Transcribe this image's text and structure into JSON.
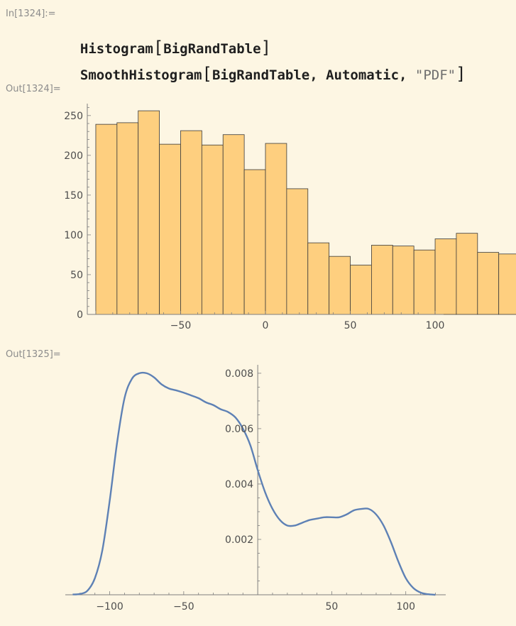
{
  "notebook": {
    "in_label": "In[1324]:=",
    "out_label_1": "Out[1324]=",
    "out_label_2": "Out[1325]=",
    "code": {
      "line1": {
        "func": "Histogram",
        "open": "[",
        "arg": "BigRandTable",
        "close": "]"
      },
      "line2": {
        "func": "SmoothHistogram",
        "open": "[",
        "arg": "BigRandTable, Automatic, ",
        "str": "\"PDF\"",
        "close": "]"
      }
    }
  },
  "chart_data": [
    {
      "type": "bar",
      "bin_width": 12.5,
      "bin_start": -100,
      "values": [
        239,
        241,
        256,
        214,
        231,
        213,
        226,
        182,
        215,
        158,
        90,
        73,
        62,
        87,
        86,
        81,
        95,
        102,
        78,
        76
      ],
      "xlim": [
        -105,
        105
      ],
      "ylim": [
        0,
        265
      ],
      "x_ticks": [
        -50,
        0,
        50,
        100
      ],
      "x_tick_labels": [
        "−50",
        "0",
        "50",
        "100"
      ],
      "y_ticks": [
        0,
        50,
        100,
        150,
        200,
        250
      ],
      "y_tick_labels": [
        "0",
        "50",
        "100",
        "150",
        "200",
        "250"
      ],
      "bar_color": "#fecf7f",
      "edge_color": "#3a3a3a",
      "axis_color": "#7f7f7f"
    },
    {
      "type": "line",
      "x": [
        -125,
        -120,
        -115,
        -110,
        -105,
        -100,
        -95,
        -90,
        -85,
        -80,
        -75,
        -70,
        -65,
        -60,
        -55,
        -50,
        -45,
        -40,
        -35,
        -30,
        -25,
        -20,
        -15,
        -10,
        -5,
        0,
        5,
        10,
        15,
        20,
        25,
        30,
        35,
        40,
        45,
        50,
        55,
        60,
        65,
        70,
        75,
        80,
        85,
        90,
        95,
        100,
        105,
        110,
        115,
        120
      ],
      "y": [
        1e-05,
        3e-05,
        0.00015,
        0.0006,
        0.0016,
        0.0034,
        0.0055,
        0.0071,
        0.0078,
        0.008,
        0.008,
        0.00785,
        0.0076,
        0.00745,
        0.00738,
        0.0073,
        0.0072,
        0.0071,
        0.00695,
        0.00685,
        0.0067,
        0.0066,
        0.0064,
        0.006,
        0.0054,
        0.0045,
        0.0037,
        0.0031,
        0.0027,
        0.0025,
        0.0025,
        0.0026,
        0.0027,
        0.00275,
        0.0028,
        0.0028,
        0.0028,
        0.0029,
        0.00305,
        0.0031,
        0.0031,
        0.0029,
        0.0025,
        0.0019,
        0.0012,
        0.0006,
        0.00025,
        8e-05,
        2e-05,
        0.0
      ],
      "xlim": [
        -130,
        127
      ],
      "ylim": [
        0,
        0.0081
      ],
      "x_ticks": [
        -100,
        -50,
        50,
        100
      ],
      "x_tick_labels": [
        "−100",
        "−50",
        "50",
        "100"
      ],
      "y_ticks": [
        0.002,
        0.004,
        0.006,
        0.008
      ],
      "y_tick_labels": [
        "0.002",
        "0.004",
        "0.006",
        "0.008"
      ],
      "line_color": "#5e81b5",
      "axis_color": "#7f7f7f"
    }
  ]
}
